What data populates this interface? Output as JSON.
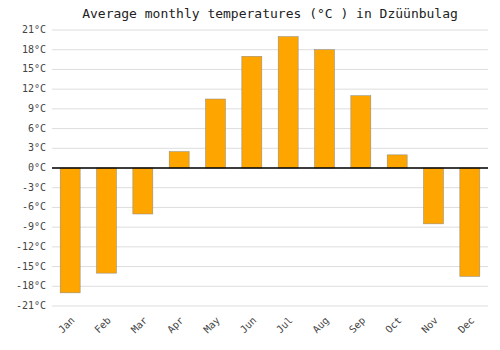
{
  "chart_data": {
    "type": "bar",
    "title": "Average monthly temperatures (°C ) in Dzüünbulag",
    "categories": [
      "Jan",
      "Feb",
      "Mar",
      "Apr",
      "May",
      "Jun",
      "Jul",
      "Aug",
      "Sep",
      "Oct",
      "Nov",
      "Dec"
    ],
    "values": [
      -19,
      -16,
      -7,
      2.5,
      10.5,
      17,
      20,
      18,
      11,
      2,
      -8.5,
      -16.5
    ],
    "color": "#FFA500",
    "ylim": [
      -21,
      21
    ],
    "yticks": [
      {
        "value": -21,
        "label": "-21°C"
      },
      {
        "value": -18,
        "label": "-18°C"
      },
      {
        "value": -15,
        "label": "-15°C"
      },
      {
        "value": -12,
        "label": "-12°C"
      },
      {
        "value": -9,
        "label": "-9°C"
      },
      {
        "value": -6,
        "label": "-6°C"
      },
      {
        "value": -3,
        "label": "-3°C"
      },
      {
        "value": 0,
        "label": "0°C"
      },
      {
        "value": 3,
        "label": "3°C"
      },
      {
        "value": 6,
        "label": "6°C"
      },
      {
        "value": 9,
        "label": "9°C"
      },
      {
        "value": 12,
        "label": "12°C"
      },
      {
        "value": 15,
        "label": "15°C"
      },
      {
        "value": 18,
        "label": "18°C"
      },
      {
        "value": 21,
        "label": "21°C"
      }
    ],
    "grid": true
  }
}
